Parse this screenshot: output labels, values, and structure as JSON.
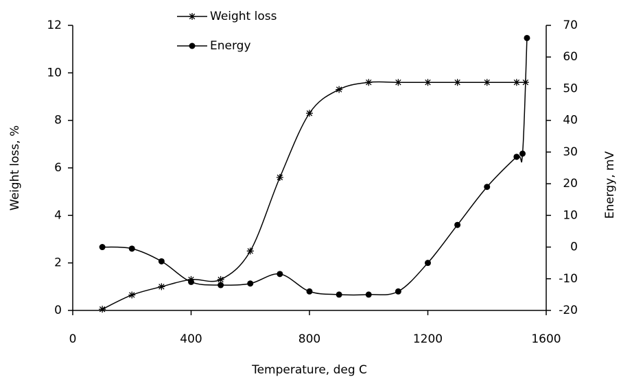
{
  "chart_data": {
    "type": "line",
    "x_label": "Temperature, deg C",
    "y_label": "Weight loss,  %",
    "y2_label": "Energy, mV",
    "xlim": [
      0,
      1600
    ],
    "xticks": [
      0,
      400,
      800,
      1200,
      1600
    ],
    "ylim": [
      0,
      12
    ],
    "yticks": [
      0,
      2,
      4,
      6,
      8,
      10,
      12
    ],
    "y2lim": [
      -20,
      70
    ],
    "y2ticks": [
      -20,
      -10,
      0,
      10,
      20,
      30,
      40,
      50,
      60,
      70
    ],
    "series": [
      {
        "name": "Weight loss",
        "color": "#000000",
        "marker": "star",
        "x": [
          100,
          200,
          300,
          400,
          500,
          600,
          700,
          800,
          900,
          1000,
          1100,
          1200,
          1300,
          1400,
          1500,
          1530
        ],
        "values": [
          0.05,
          0.65,
          1.0,
          1.3,
          1.3,
          2.5,
          5.6,
          8.3,
          9.3,
          9.6,
          9.6,
          9.6,
          9.6,
          9.6,
          9.6,
          9.6
        ]
      },
      {
        "name": "Energy",
        "color": "#000000",
        "marker": "circle",
        "axis": "y2",
        "x": [
          100,
          200,
          300,
          400,
          500,
          600,
          700,
          800,
          900,
          1000,
          1100,
          1200,
          1300,
          1400,
          1500,
          1520,
          1535
        ],
        "values": [
          0,
          -0.5,
          -4.5,
          -11,
          -12,
          -11.5,
          -8.5,
          -14,
          -15,
          -15,
          -14,
          -5,
          7,
          19,
          28.5,
          29.5,
          66
        ]
      }
    ]
  }
}
